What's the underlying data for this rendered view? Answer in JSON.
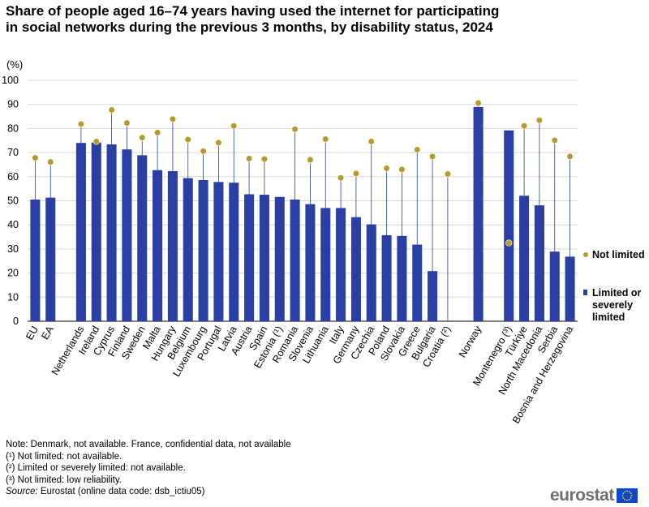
{
  "chart_data": {
    "type": "bar",
    "title": "Share of people aged 16–74 years having used the internet for participating in social networks during the previous 3 months, by disability status, 2024",
    "unit_label": "(%)",
    "ylim": [
      0,
      100
    ],
    "yticks": [
      0,
      10,
      20,
      30,
      40,
      50,
      60,
      70,
      80,
      90,
      100
    ],
    "gridlines": true,
    "groups": [
      {
        "name": "aggregates",
        "categories": [
          "EU",
          "EA"
        ]
      },
      {
        "name": "member_states",
        "categories": [
          "Netherlands",
          "Ireland",
          "Cyprus",
          "Finland",
          "Sweden",
          "Malta",
          "Hungary",
          "Belgium",
          "Luxembourg",
          "Portugal",
          "Latvia",
          "Austria",
          "Spain",
          "Estonia (¹)",
          "Romania",
          "Slovenia",
          "Lithuania",
          "Italy",
          "Germany",
          "Czechia",
          "Poland",
          "Slovakia",
          "Greece",
          "Bulgaria",
          "Croatia (²)"
        ]
      },
      {
        "name": "efta",
        "categories": [
          "Norway"
        ]
      },
      {
        "name": "candidates",
        "categories": [
          "Montenegro (³)",
          "Türkiye",
          "North Macedonia",
          "Serbia",
          "Bosnia and Herzegovina"
        ]
      }
    ],
    "categories": [
      "EU",
      "EA",
      "Netherlands",
      "Ireland",
      "Cyprus",
      "Finland",
      "Sweden",
      "Malta",
      "Hungary",
      "Belgium",
      "Luxembourg",
      "Portugal",
      "Latvia",
      "Austria",
      "Spain",
      "Estonia (¹)",
      "Romania",
      "Slovenia",
      "Lithuania",
      "Italy",
      "Germany",
      "Czechia",
      "Poland",
      "Slovakia",
      "Greece",
      "Bulgaria",
      "Croatia (²)",
      "Norway",
      "Montenegro (³)",
      "Türkiye",
      "North Macedonia",
      "Serbia",
      "Bosnia and Herzegovina"
    ],
    "series": [
      {
        "name": "Limited or severely limited",
        "mark": "bar",
        "color": "#2a3fa4",
        "values": [
          50.5,
          51.3,
          74,
          74.2,
          73.4,
          71.3,
          68.9,
          62.7,
          62.3,
          59.4,
          58.6,
          57.8,
          57.5,
          52.7,
          52.5,
          51.6,
          50.5,
          48.6,
          47,
          47,
          43.2,
          40.2,
          35.7,
          35.4,
          31.8,
          20.8,
          null,
          88.9,
          79.2,
          52.1,
          48.1,
          28.9,
          26.8
        ]
      },
      {
        "name": "Not limited",
        "mark": "dot",
        "color": "#b89a2b",
        "values": [
          67.8,
          66.1,
          81.8,
          74.6,
          87.7,
          82.3,
          76.2,
          78.3,
          83.9,
          75.4,
          70.6,
          74.1,
          81.1,
          67.5,
          67.3,
          null,
          79.7,
          67,
          75.6,
          59.5,
          61.3,
          74.6,
          63.5,
          63,
          71.2,
          68.4,
          61.1,
          90.6,
          32.5,
          81.1,
          83.4,
          75.1,
          68.4
        ]
      }
    ],
    "legend": {
      "position": "right",
      "items": [
        "Not limited",
        "Limited or severely limited"
      ]
    }
  },
  "notes": {
    "line1": "Note: Denmark, not available. France, confidential data, not available",
    "line2": "(¹) Not limited: not available.",
    "line3": "(²) Limited or severely limited: not available.",
    "line4": "(³) Not limited: low reliability.",
    "source_label": "Source:",
    "source_text": " Eurostat (online data code: dsb_ictiu05)"
  },
  "branding": {
    "logo_text": "eurostat",
    "flag_color": "#0e47cb",
    "star_color": "#ffdd00"
  }
}
